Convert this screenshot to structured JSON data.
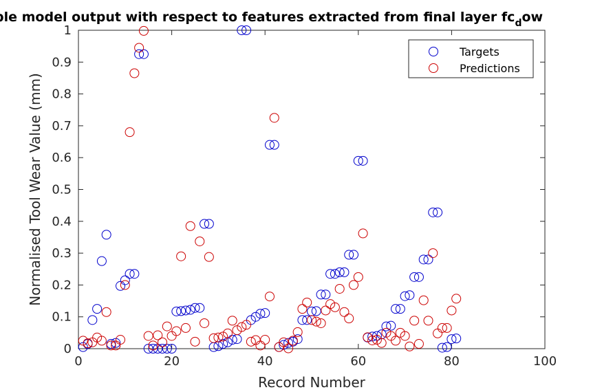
{
  "chart_data": {
    "type": "scatter",
    "title_main": "ble model output with respect to features extracted from final layer fc",
    "title_sub": "d",
    "title_tail": "ow",
    "xlabel": "Record Number",
    "ylabel": "Normalised Tool Wear Value (mm)",
    "xlim": [
      0,
      100
    ],
    "ylim": [
      0,
      1
    ],
    "xticks": [
      0,
      20,
      40,
      60,
      80,
      100
    ],
    "yticks": [
      0,
      0.1,
      0.2,
      0.3,
      0.4,
      0.5,
      0.6,
      0.7,
      0.8,
      0.9,
      1
    ],
    "ytick_labels": [
      "0",
      "0.1",
      "0.2",
      "0.3",
      "0.4",
      "0.5",
      "0.6",
      "0.7",
      "0.8",
      "0.9",
      "1"
    ],
    "xtick_labels": [
      "0",
      "20",
      "40",
      "60",
      "80",
      "100"
    ],
    "grid": false,
    "legend_position": "top-right",
    "series": [
      {
        "name": "Targets",
        "color": "#0000cc",
        "x": [
          1,
          2,
          3,
          4,
          5,
          6,
          7,
          8,
          9,
          10,
          11,
          12,
          13,
          14,
          15,
          16,
          17,
          18,
          19,
          20,
          21,
          22,
          23,
          24,
          25,
          26,
          27,
          28,
          29,
          30,
          31,
          32,
          33,
          34,
          35,
          36,
          37,
          38,
          39,
          40,
          41,
          42,
          43,
          44,
          45,
          46,
          47,
          48,
          49,
          50,
          51,
          52,
          53,
          54,
          55,
          56,
          57,
          58,
          59,
          60,
          61,
          62,
          63,
          64,
          65,
          66,
          67,
          68,
          69,
          70,
          71,
          72,
          73,
          74,
          75,
          76,
          77,
          78,
          79,
          80,
          81
        ],
        "y": [
          0.005,
          0.015,
          0.09,
          0.125,
          0.275,
          0.358,
          0.015,
          0.018,
          0.197,
          0.215,
          0.235,
          0.235,
          0.925,
          0.925,
          0.0,
          0.0,
          0.0,
          0.0,
          0.0,
          0.0,
          0.117,
          0.118,
          0.12,
          0.122,
          0.128,
          0.128,
          0.392,
          0.392,
          0.005,
          0.008,
          0.015,
          0.02,
          0.028,
          0.03,
          1.0,
          1.0,
          0.09,
          0.1,
          0.11,
          0.112,
          0.64,
          0.64,
          0.005,
          0.012,
          0.018,
          0.022,
          0.03,
          0.09,
          0.09,
          0.117,
          0.118,
          0.17,
          0.17,
          0.235,
          0.235,
          0.24,
          0.24,
          0.295,
          0.295,
          0.59,
          0.59,
          0.035,
          0.038,
          0.04,
          0.045,
          0.07,
          0.072,
          0.125,
          0.125,
          0.165,
          0.168,
          0.225,
          0.225,
          0.28,
          0.28,
          0.428,
          0.428,
          0.003,
          0.005,
          0.03,
          0.032
        ]
      },
      {
        "name": "Predictions",
        "color": "#cc0000",
        "x": [
          1,
          2,
          3,
          4,
          5,
          6,
          7,
          8,
          9,
          10,
          11,
          12,
          13,
          14,
          15,
          16,
          17,
          18,
          19,
          20,
          21,
          22,
          23,
          24,
          25,
          26,
          27,
          28,
          29,
          30,
          31,
          32,
          33,
          34,
          35,
          36,
          37,
          38,
          39,
          40,
          41,
          42,
          43,
          44,
          45,
          46,
          47,
          48,
          49,
          50,
          51,
          52,
          53,
          54,
          55,
          56,
          57,
          58,
          59,
          60,
          61,
          62,
          63,
          64,
          65,
          66,
          67,
          68,
          69,
          70,
          71,
          72,
          73,
          74,
          75,
          76,
          77,
          78,
          79,
          80,
          81
        ],
        "y": [
          0.025,
          0.017,
          0.02,
          0.035,
          0.025,
          0.115,
          0.01,
          0.01,
          0.028,
          0.2,
          0.68,
          0.865,
          0.945,
          0.998,
          0.04,
          0.01,
          0.042,
          0.02,
          0.07,
          0.04,
          0.055,
          0.29,
          0.065,
          0.385,
          0.022,
          0.337,
          0.08,
          0.288,
          0.033,
          0.035,
          0.038,
          0.048,
          0.088,
          0.058,
          0.068,
          0.075,
          0.022,
          0.027,
          0.01,
          0.028,
          0.164,
          0.725,
          0.005,
          0.02,
          0.001,
          0.025,
          0.052,
          0.125,
          0.145,
          0.09,
          0.085,
          0.08,
          0.12,
          0.14,
          0.13,
          0.188,
          0.115,
          0.095,
          0.2,
          0.225,
          0.362,
          0.036,
          0.026,
          0.028,
          0.018,
          0.05,
          0.04,
          0.025,
          0.05,
          0.04,
          0.007,
          0.088,
          0.015,
          0.152,
          0.088,
          0.3,
          0.048,
          0.065,
          0.065,
          0.12,
          0.157
        ]
      }
    ]
  }
}
